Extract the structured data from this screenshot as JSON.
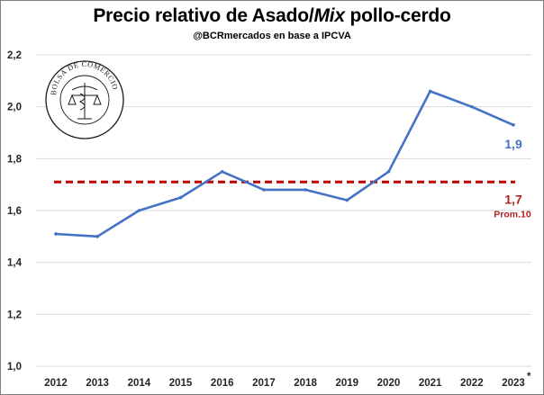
{
  "title_main": "Precio relativo de Asado/",
  "title_italic": "Mix",
  "title_end": " pollo-cerdo",
  "subtitle": "@BCRmercados en base a IPCVA",
  "logo_text": "BOLSA DE COMERCIO DE ROSARIO",
  "colors": {
    "line": "#4472c4",
    "average": "#c00000",
    "grid": "#d9d9d9"
  },
  "chart_data": {
    "type": "line",
    "categories": [
      "2012",
      "2013",
      "2014",
      "2015",
      "2016",
      "2017",
      "2018",
      "2019",
      "2020",
      "2021",
      "2022",
      "2023"
    ],
    "x_tick_labels": [
      "2012",
      "2013",
      "2014",
      "2015",
      "2016",
      "2017",
      "2018",
      "2019",
      "2020",
      "2021",
      "2022",
      "2023"
    ],
    "last_tick_marker": "*",
    "series": [
      {
        "values": [
          1.51,
          1.5,
          1.6,
          1.65,
          1.75,
          1.68,
          1.68,
          1.64,
          1.75,
          2.06,
          2.0,
          1.93
        ]
      }
    ],
    "average": {
      "value": 1.71,
      "label": "1,7",
      "sublabel": "Prom.10"
    },
    "last_value_label": "1,9",
    "ylim": [
      1.0,
      2.2
    ],
    "y_ticks": [
      1.0,
      1.2,
      1.4,
      1.6,
      1.8,
      2.0,
      2.2
    ],
    "y_tick_labels": [
      "1,0",
      "1,2",
      "1,4",
      "1,6",
      "1,8",
      "2,0",
      "2,2"
    ],
    "grid": true,
    "xlabel": "",
    "ylabel": ""
  }
}
